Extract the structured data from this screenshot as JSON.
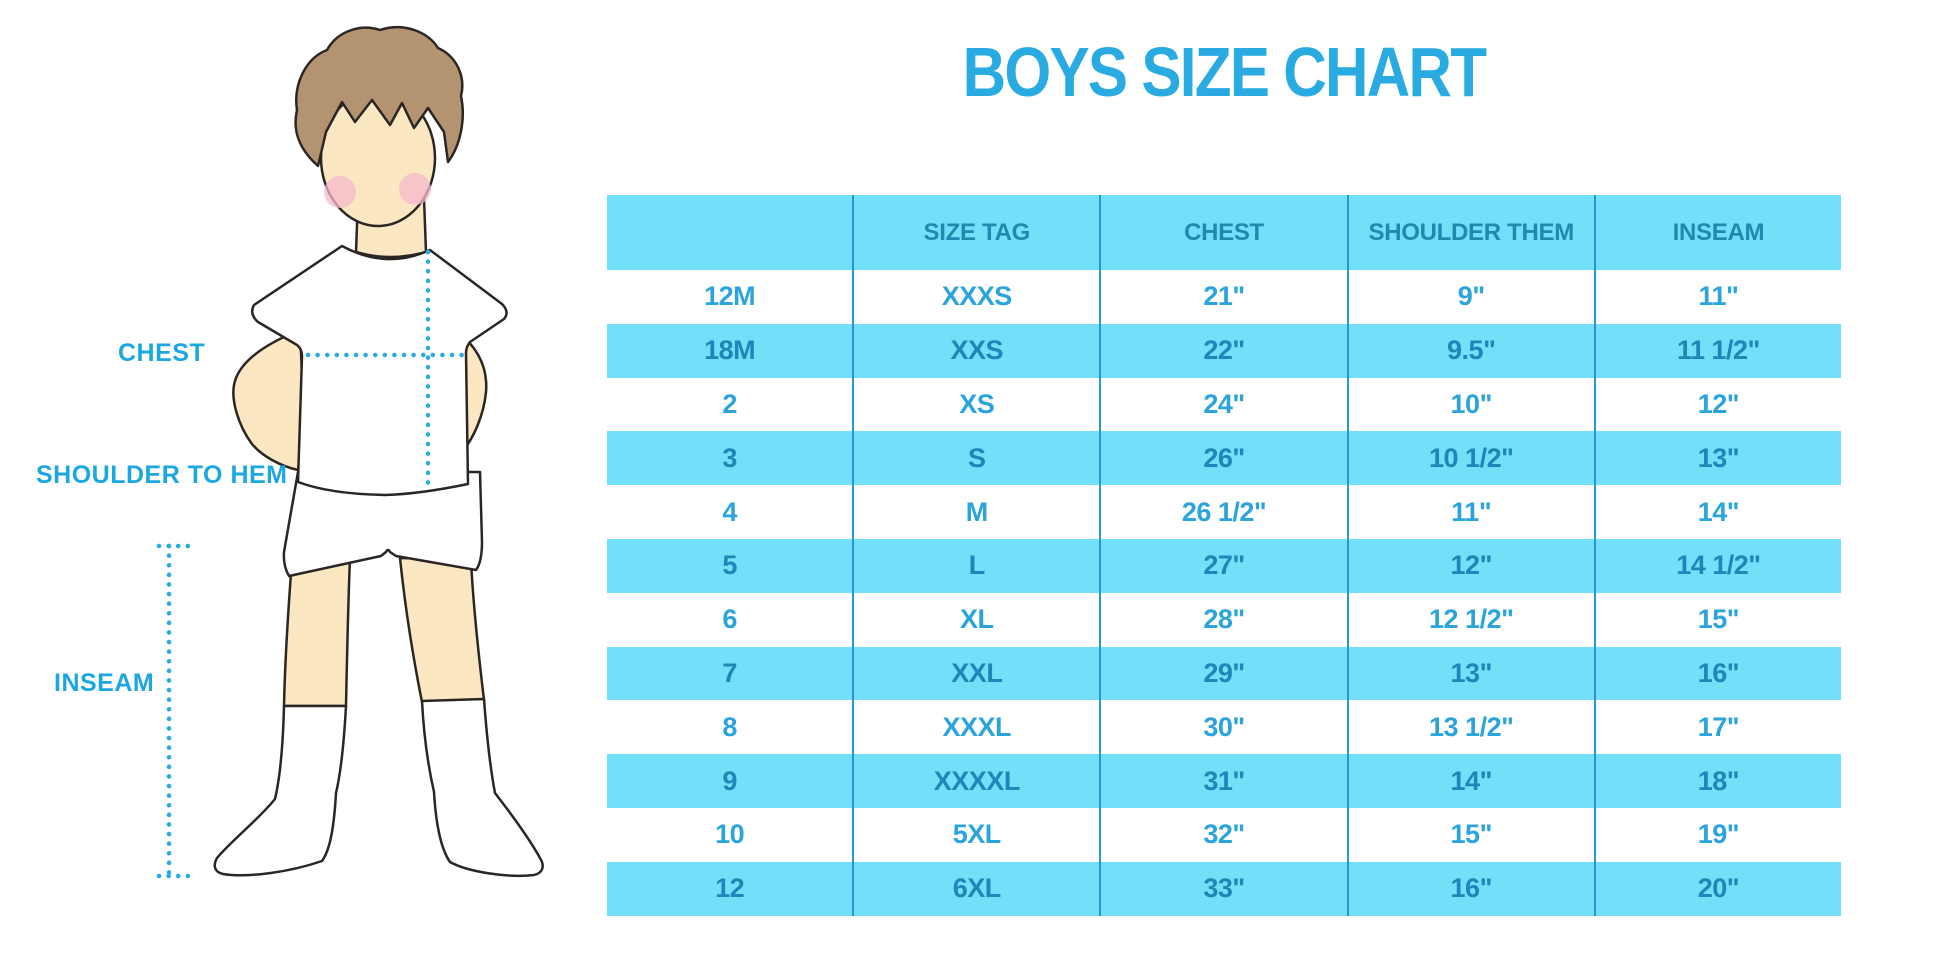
{
  "title": "BOYS SIZE CHART",
  "figure": {
    "labels": {
      "chest": "CHEST",
      "shoulder_to_hem": "SHOULDER TO HEM",
      "inseam": "INSEAM"
    }
  },
  "colors": {
    "accent_blue": "#29ABE2",
    "band_blue": "#73DFF8",
    "separator_blue": "#2499CC",
    "band_text_blue": "#1E86B8",
    "plain_text_blue": "#2BA3DC",
    "skin": "#FBE7C2",
    "hair": "#B49470",
    "blush": "#F5B9CB",
    "outline": "#2B2623"
  },
  "chart_data": {
    "type": "table",
    "title": "BOYS SIZE CHART",
    "columns": [
      "",
      "SIZE TAG",
      "CHEST",
      "SHOULDER THEM",
      "INSEAM"
    ],
    "rows": [
      [
        "12M",
        "XXXS",
        "21\"",
        "9\"",
        "11\""
      ],
      [
        "18M",
        "XXS",
        "22\"",
        "9.5\"",
        "11 1/2\""
      ],
      [
        "2",
        "XS",
        "24\"",
        "10\"",
        "12\""
      ],
      [
        "3",
        "S",
        "26\"",
        "10 1/2\"",
        "13\""
      ],
      [
        "4",
        "M",
        "26 1/2\"",
        "11\"",
        "14\""
      ],
      [
        "5",
        "L",
        "27\"",
        "12\"",
        "14 1/2\""
      ],
      [
        "6",
        "XL",
        "28\"",
        "12 1/2\"",
        "15\""
      ],
      [
        "7",
        "XXL",
        "29\"",
        "13\"",
        "16\""
      ],
      [
        "8",
        "XXXL",
        "30\"",
        "13 1/2\"",
        "17\""
      ],
      [
        "9",
        "XXXXL",
        "31\"",
        "14\"",
        "18\""
      ],
      [
        "10",
        "5XL",
        "32\"",
        "15\"",
        "19\""
      ],
      [
        "12",
        "6XL",
        "33\"",
        "16\"",
        "20\""
      ]
    ],
    "layout": {
      "striped": true,
      "first_data_row_background": "white",
      "column_separators": true
    }
  }
}
